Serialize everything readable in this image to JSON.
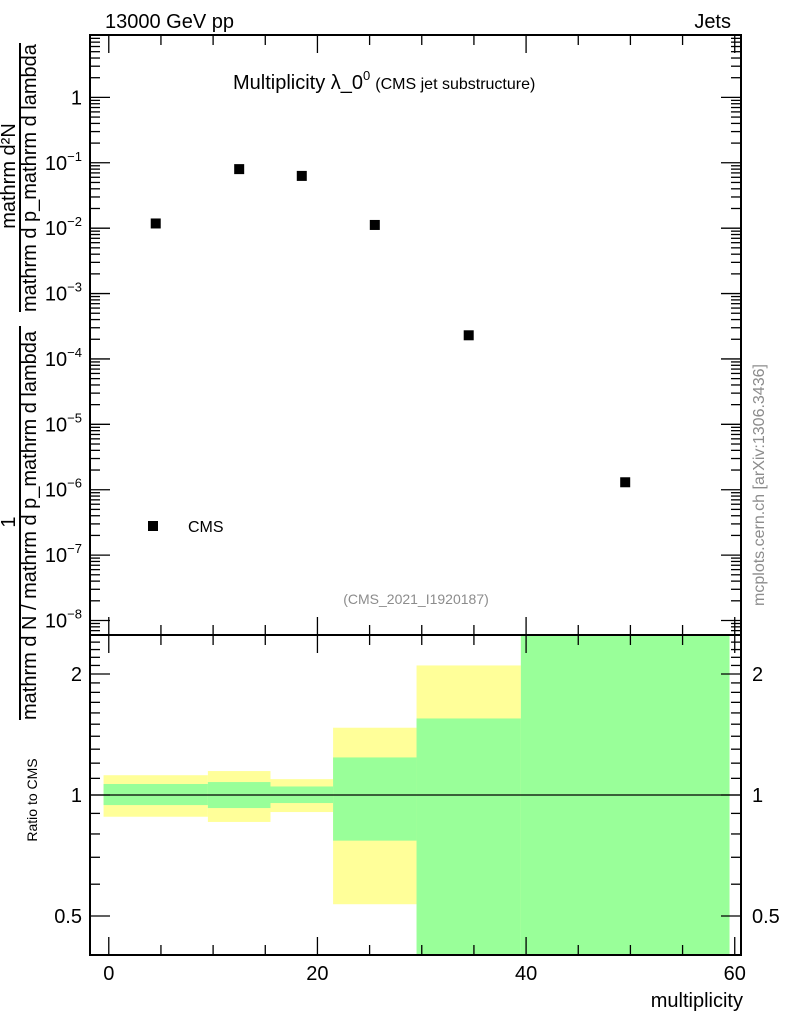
{
  "chart_data": [
    {
      "type": "scatter",
      "panel": "main",
      "title": "Multiplicity λ_0",
      "title_sup": "0",
      "subtitle": "(CMS jet substructure)",
      "header_left": "13000 GeV pp",
      "header_right": "Jets",
      "analysis_id": "(CMS_2021_I1920187)",
      "side_label": "mcplots.cern.ch [arXiv:1306.3436]",
      "ylabel_parts": {
        "outer_num": "1",
        "outer_den": "mathrm d N / mathrm d p_mathrm d lambda",
        "inner_num": "mathrm d²N",
        "inner_den": "mathrm d p_mathrm d lambda"
      },
      "yscale": "log",
      "ylim": [
        6e-09,
        9
      ],
      "xlim": [
        -1.8,
        60.6
      ],
      "ytick_values": [
        1,
        0.1,
        0.01,
        0.001,
        0.0001,
        1e-05,
        1e-06,
        1e-07,
        1e-08
      ],
      "ytick_labels": [
        {
          "base": "1",
          "exp": ""
        },
        {
          "base": "10",
          "exp": "−1"
        },
        {
          "base": "10",
          "exp": "−2"
        },
        {
          "base": "10",
          "exp": "−3"
        },
        {
          "base": "10",
          "exp": "−4"
        },
        {
          "base": "10",
          "exp": "−5"
        },
        {
          "base": "10",
          "exp": "−6"
        },
        {
          "base": "10",
          "exp": "−7"
        },
        {
          "base": "10",
          "exp": "−8"
        }
      ],
      "legend": {
        "entries": [
          "CMS"
        ],
        "placement": "bottom-left"
      },
      "series": [
        {
          "name": "CMS",
          "x": [
            4.5,
            12.5,
            18.5,
            25.5,
            34.5,
            49.5
          ],
          "y": [
            0.0118,
            0.08,
            0.063,
            0.0112,
            0.00023,
            1.3e-06
          ],
          "color": "#000000"
        }
      ]
    },
    {
      "type": "area",
      "panel": "ratio",
      "ylabel": "Ratio to CMS",
      "xlabel": "multiplicity",
      "yscale": "log",
      "ylim": [
        0.4,
        2.5
      ],
      "xlim": [
        -1.8,
        60.6
      ],
      "xtick_values": [
        0,
        20,
        40,
        60
      ],
      "xtick_labels": [
        "0",
        "20",
        "40",
        "60"
      ],
      "ytick_values": [
        0.5,
        1,
        2
      ],
      "ytick_labels": [
        "0.5",
        "1",
        "2"
      ],
      "reference_line": 1,
      "bin_edges": [
        -0.5,
        9.5,
        15.5,
        21.5,
        29.5,
        39.5,
        59.5
      ],
      "band_outer": {
        "color": "#ffff99",
        "lo": [
          0.883,
          0.857,
          0.907,
          0.535,
          0.456,
          0.3
        ],
        "hi": [
          1.12,
          1.147,
          1.095,
          1.47,
          2.1,
          3.0
        ]
      },
      "band_inner": {
        "color": "#99ff99",
        "lo": [
          0.944,
          0.928,
          0.955,
          0.77,
          0.3,
          0.3
        ],
        "hi": [
          1.065,
          1.077,
          1.05,
          1.24,
          1.55,
          3.0
        ]
      }
    }
  ]
}
